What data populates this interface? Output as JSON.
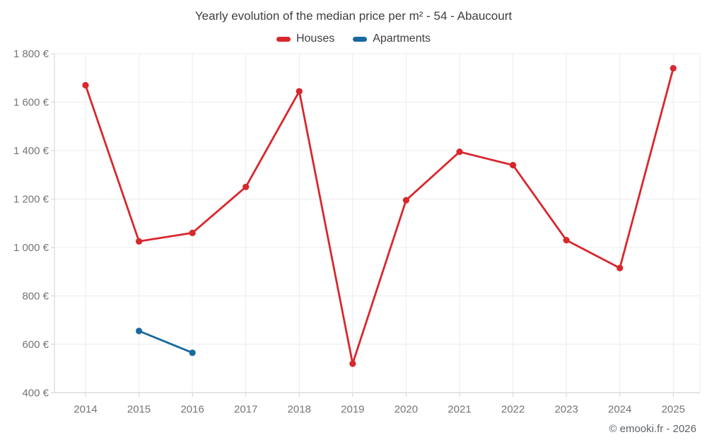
{
  "title": "Yearly evolution of the median price per m² - 54 - Abaucourt",
  "legend": {
    "items": [
      {
        "label": "Houses",
        "color": "#d8272d"
      },
      {
        "label": "Apartments",
        "color": "#17699e"
      }
    ]
  },
  "footer": {
    "credit": "© emooki.fr - 2026"
  },
  "chart_data": {
    "type": "line",
    "title": "Yearly evolution of the median price per m² - 54 - Abaucourt",
    "categories": [
      2014,
      2015,
      2016,
      2017,
      2018,
      2019,
      2020,
      2021,
      2022,
      2023,
      2024,
      2025
    ],
    "series": [
      {
        "name": "Houses",
        "color": "#d8272d",
        "values": [
          1670,
          1025,
          1060,
          1250,
          1645,
          520,
          1195,
          1395,
          1340,
          1030,
          915,
          1740
        ]
      },
      {
        "name": "Apartments",
        "color": "#17699e",
        "values": [
          null,
          655,
          565,
          null,
          null,
          null,
          null,
          null,
          null,
          null,
          null,
          null
        ]
      }
    ],
    "ylim": [
      400,
      1800
    ],
    "ytick_step": 200,
    "ytick_format": "{value} €",
    "xlabel": "",
    "ylabel": "",
    "grid": true,
    "legend_position": "top",
    "marker": "circle"
  }
}
